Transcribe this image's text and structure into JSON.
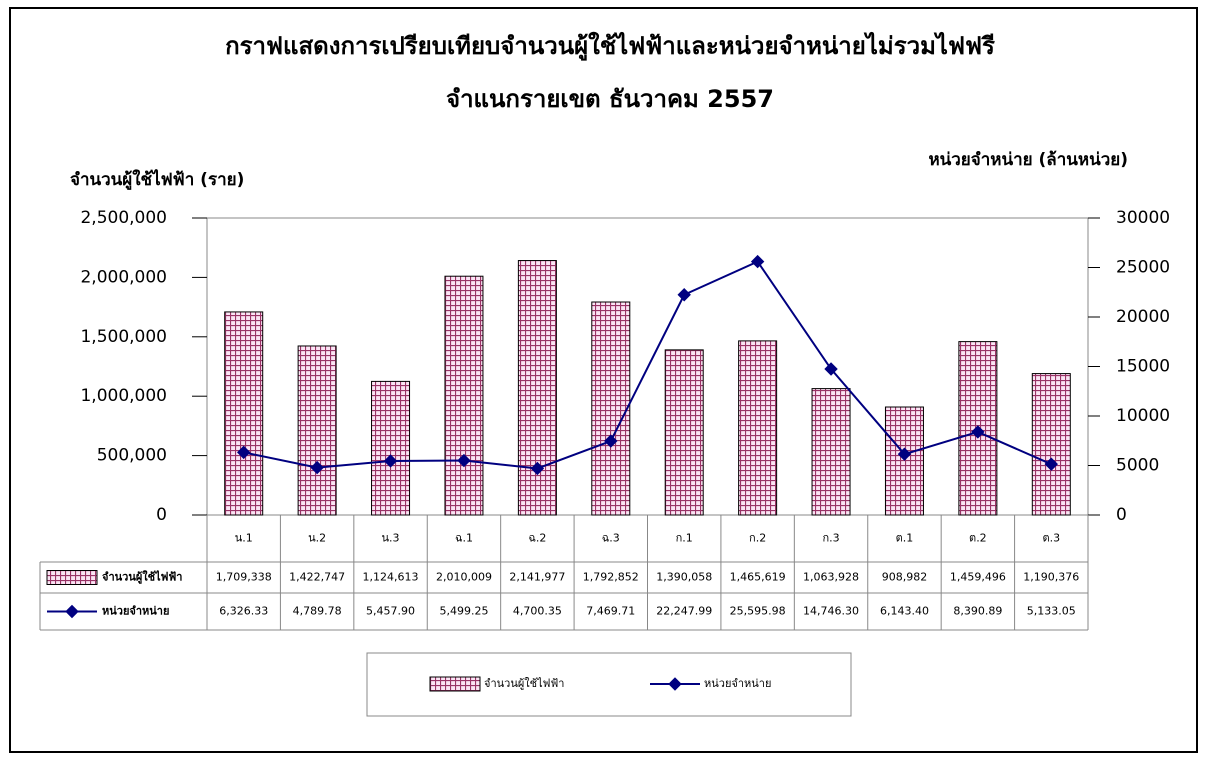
{
  "chart_data": {
    "type": "bar_line",
    "title": "กราฟแสดงการเปรียบเทียบจำนวนผู้ใช้ไฟฟ้าและหน่วยจำหน่ายไม่รวมไฟฟรี",
    "subtitle": "จำแนกรายเขต  ธันวาคม 2557",
    "y_label": "จำนวนผู้ใช้ไฟฟ้า (ราย)",
    "y2_label": "หน่วยจำหน่าย (ล้านหน่วย)",
    "categories": [
      "น.1",
      "น.2",
      "น.3",
      "ฉ.1",
      "ฉ.2",
      "ฉ.3",
      "ก.1",
      "ก.2",
      "ก.3",
      "ต.1",
      "ต.2",
      "ต.3"
    ],
    "series": [
      {
        "name": "จำนวนผู้ใช้ไฟฟ้า",
        "type": "bar",
        "color": "#993366",
        "values": [
          1709338,
          1422747,
          1124613,
          2010009,
          2141977,
          1792852,
          1390058,
          1465619,
          1063928,
          908982,
          1459496,
          1190376
        ],
        "value_labels": [
          "1,709,338",
          "1,422,747",
          "1,124,613",
          "2,010,009",
          "2,141,977",
          "1,792,852",
          "1,390,058",
          "1,465,619",
          "1,063,928",
          "908,982",
          "1,459,496",
          "1,190,376"
        ]
      },
      {
        "name": "หน่วยจำหน่าย",
        "type": "line",
        "axis": "y2",
        "color": "#000080",
        "values": [
          6326.33,
          4789.78,
          5457.9,
          5499.25,
          4700.35,
          7469.71,
          22247.99,
          25595.98,
          14746.3,
          6143.4,
          8390.89,
          5133.05
        ],
        "value_labels": [
          "6,326.33",
          "4,789.78",
          "5,457.90",
          "5,499.25",
          "4,700.35",
          "7,469.71",
          "22,247.99",
          "25,595.98",
          "14,746.30",
          "6,143.40",
          "8,390.89",
          "5,133.05"
        ]
      }
    ],
    "ylim": [
      0,
      2500000
    ],
    "yticks": [
      0,
      {
        "value": 500000,
        "label": "500,000"
      },
      {
        "value": 1000000,
        "label": "1,000,000"
      },
      {
        "value": 1500000,
        "label": "1,500,000"
      },
      {
        "value": 2000000,
        "label": "2,000,000"
      },
      {
        "value": 2500000,
        "label": "2,500,000"
      }
    ],
    "y2lim": [
      0,
      30000
    ],
    "y2ticks": [
      0,
      5000,
      10000,
      15000,
      20000,
      25000,
      30000
    ],
    "grid": false,
    "legend": "bottom"
  }
}
